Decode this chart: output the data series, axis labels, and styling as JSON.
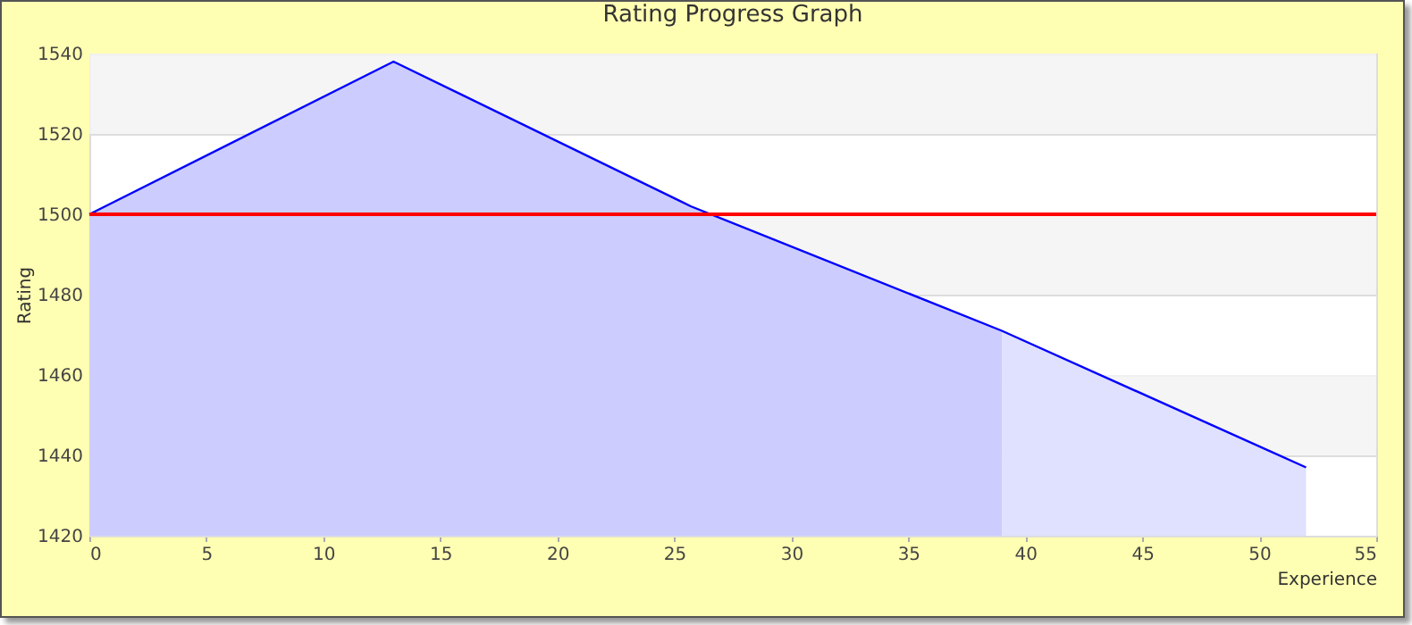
{
  "chart_data": {
    "type": "area",
    "title": "Rating Progress Graph",
    "xlabel": "Experience",
    "ylabel": "Rating",
    "xlim": [
      0,
      55
    ],
    "xticks": [
      0,
      5,
      10,
      15,
      20,
      25,
      30,
      35,
      40,
      45,
      50,
      55
    ],
    "ylim": [
      1420,
      1540
    ],
    "yticks": [
      1420,
      1440,
      1460,
      1480,
      1500,
      1520,
      1540
    ],
    "grid": "y",
    "bands": [
      {
        "axis": "y",
        "from": 1520,
        "to": 1540,
        "color": "#f3f3f3"
      },
      {
        "axis": "y",
        "from": 1480,
        "to": 1500,
        "color": "#f3f3f3"
      },
      {
        "axis": "y",
        "from": 1440,
        "to": 1460,
        "color": "#f3f3f3"
      }
    ],
    "ref_lines": [
      {
        "axis": "y",
        "value": 1500,
        "color": "#ff0000"
      }
    ],
    "series": [
      {
        "color": "#ccccff",
        "x": [
          0,
          13,
          25.7,
          39
        ],
        "values": [
          1500,
          1538,
          1502,
          1471
        ]
      },
      {
        "color": "#e0e0ff",
        "x": [
          39,
          52
        ],
        "values": [
          1471,
          1437
        ]
      },
      {
        "type": "line",
        "color": "#0000ff",
        "x": [
          0,
          13,
          25.7,
          39,
          52
        ],
        "values": [
          1500,
          1538,
          1502,
          1471,
          1437
        ]
      }
    ]
  }
}
